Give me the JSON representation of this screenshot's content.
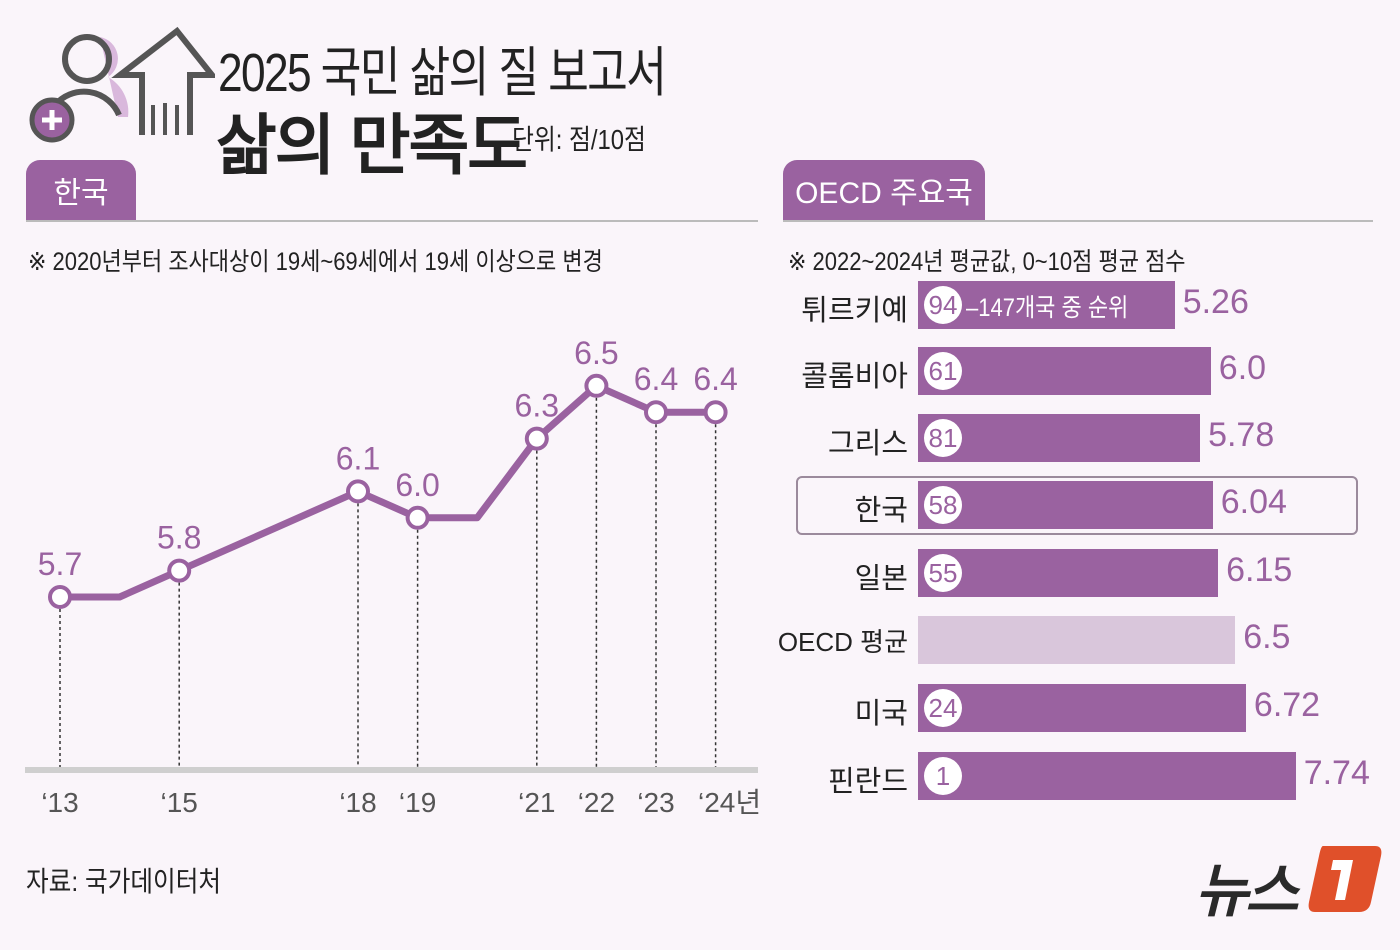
{
  "header": {
    "title": "2025 국민 삶의 질 보고서",
    "subtitle": "삶의 만족도",
    "unit": "단위: 점/10점",
    "icon": "person-plus-arrow-up-icon"
  },
  "colors": {
    "accent": "#9a62a0",
    "light_bar": "#d9c6db",
    "background": "#faf5fa"
  },
  "source": "자료: 국가데이터처",
  "logo": "뉴스1",
  "chart_data": [
    {
      "type": "line",
      "tab": "한국",
      "note": "※ 2020년부터 조사대상이 19세~69세에서 19세 이상으로 변경",
      "x": [
        2013,
        2014,
        2015,
        2018,
        2019,
        2020,
        2021,
        2022,
        2023,
        2024
      ],
      "y": [
        5.7,
        5.7,
        5.8,
        6.1,
        6.0,
        6.0,
        6.3,
        6.5,
        6.4,
        6.4
      ],
      "labeled": [
        true,
        false,
        true,
        true,
        true,
        false,
        true,
        true,
        true,
        true
      ],
      "data_labels": [
        "5.7",
        "",
        "5.8",
        "6.1",
        "6.0",
        "",
        "6.3",
        "6.5",
        "6.4",
        "6.4"
      ],
      "tick_labels": [
        "‘13",
        "‘15",
        "‘18",
        "‘19",
        "‘21",
        "‘22",
        "‘23",
        "‘24년"
      ],
      "tick_years": [
        2013,
        2015,
        2018,
        2019,
        2021,
        2022,
        2023,
        2024
      ],
      "grid": false
    },
    {
      "type": "bar",
      "orientation": "horizontal",
      "tab": "OECD 주요국",
      "note": "※ 2022~2024년 평균값, 0~10점 평균 점수",
      "rank_note": "147개국 중 순위",
      "categories": [
        "튀르키예",
        "콜롬비아",
        "그리스",
        "한국",
        "일본",
        "OECD 평균",
        "미국",
        "핀란드"
      ],
      "values": [
        5.26,
        6.0,
        5.78,
        6.04,
        6.15,
        6.5,
        6.72,
        7.74
      ],
      "value_labels": [
        "5.26",
        "6.0",
        "5.78",
        "6.04",
        "6.15",
        "6.5",
        "6.72",
        "7.74"
      ],
      "ranks": [
        "94",
        "61",
        "81",
        "58",
        "55",
        "",
        "24",
        "1"
      ],
      "highlight": "한국",
      "xlim": [
        0,
        10
      ]
    }
  ]
}
